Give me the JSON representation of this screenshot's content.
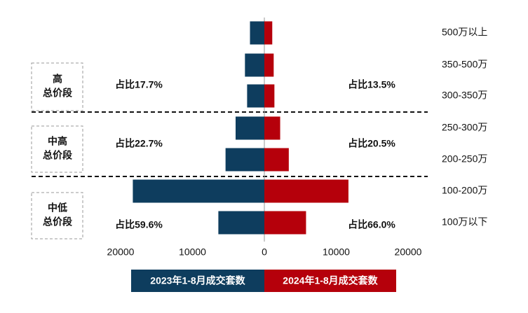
{
  "chart_data": {
    "type": "butterfly-bar",
    "categories": [
      "500万以上",
      "350-500万",
      "300-350万",
      "250-300万",
      "200-250万",
      "100-200万",
      "100万以下"
    ],
    "series": [
      {
        "name": "2023年1-8月成交套数",
        "color": "#0e3d5e",
        "side": "left",
        "values": [
          2000,
          2700,
          2400,
          4000,
          5400,
          18300,
          6400
        ]
      },
      {
        "name": "2024年1-8月成交套数",
        "color": "#b5000b",
        "side": "right",
        "values": [
          1100,
          1300,
          1400,
          2200,
          3400,
          11700,
          5800
        ]
      }
    ],
    "xlim": [
      -20000,
      20000
    ],
    "xticks": [
      {
        "value": -20000,
        "label": "20000"
      },
      {
        "value": -10000,
        "label": "10000"
      },
      0,
      10000,
      20000
    ],
    "groups": [
      {
        "label": [
          "高",
          "总价段"
        ],
        "share_2023": "占比17.7%",
        "share_2024": "占比13.5%"
      },
      {
        "label": [
          "中高",
          "总价段"
        ],
        "share_2023": "占比22.7%",
        "share_2024": "占比20.5%"
      },
      {
        "label": [
          "中低",
          "总价段"
        ],
        "share_2023": "占比59.6%",
        "share_2024": "占比66.0%"
      }
    ]
  }
}
